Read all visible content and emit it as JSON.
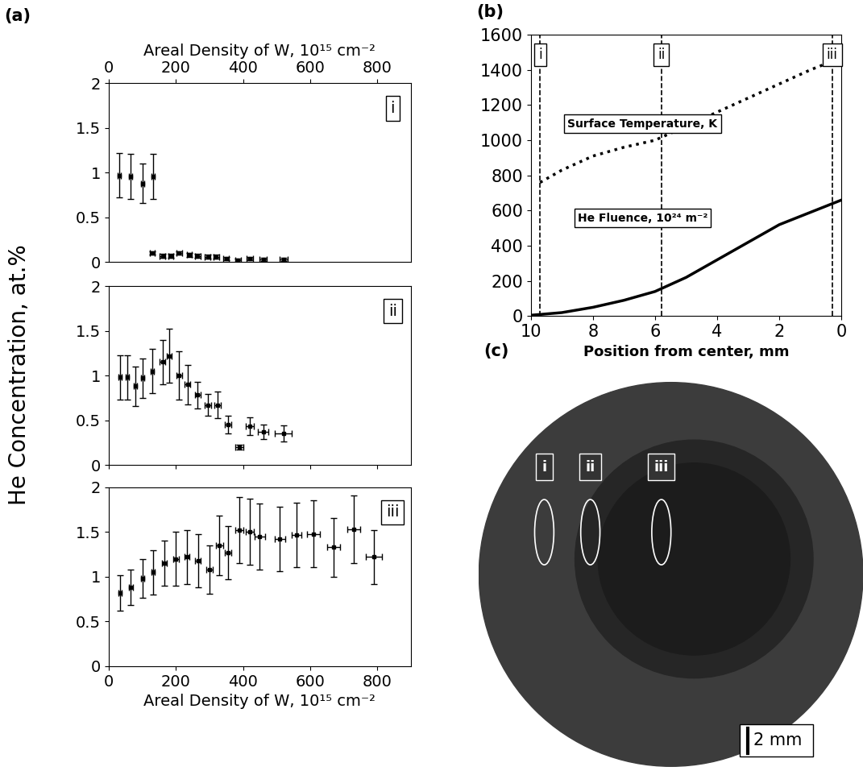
{
  "chart_data": [
    {
      "type": "scatter",
      "panel": "(a)",
      "xlabel": "Areal Density of W, 10¹⁵ cm⁻²",
      "annotations": [
        "i"
      ],
      "xlim": [
        0,
        900
      ],
      "xticks": [
        0,
        200,
        400,
        600,
        800
      ],
      "ylim": [
        0,
        2
      ],
      "yticks": [
        0,
        0.5,
        1,
        1.5,
        2
      ],
      "series": [
        {
          "x": [
            31,
            64,
            100,
            133
          ],
          "values": [
            0.97,
            0.96,
            0.88,
            0.96
          ],
          "x_err": [
            5,
            5,
            5,
            5
          ],
          "y_err": [
            0.25,
            0.25,
            0.22,
            0.25
          ],
          "color": "#000000",
          "marker": "s"
        },
        {
          "x": [
            130,
            160,
            185,
            210,
            240,
            265,
            295,
            320,
            350,
            385,
            420,
            460,
            520
          ],
          "values": [
            0.1,
            0.07,
            0.07,
            0.1,
            0.08,
            0.07,
            0.06,
            0.06,
            0.04,
            0.02,
            0.04,
            0.03,
            0.03
          ],
          "x_err": [
            8,
            8,
            8,
            8,
            8,
            8,
            8,
            8,
            8,
            8,
            10,
            10,
            12
          ],
          "y_err": [
            0.02,
            0.02,
            0.02,
            0.02,
            0.02,
            0.02,
            0.02,
            0.02,
            0.02,
            0.02,
            0.02,
            0.02,
            0.02
          ],
          "color": "#000000",
          "marker": "s"
        }
      ]
    },
    {
      "type": "scatter",
      "ylabel": "He Concentration, at.%",
      "annotations": [
        "ii"
      ],
      "tick_labels": "y",
      "xlim": [
        0,
        900
      ],
      "xticks": [
        0,
        200,
        400,
        600,
        800
      ],
      "ylim": [
        0,
        2
      ],
      "yticks": [
        0,
        0.5,
        1,
        1.5,
        2
      ],
      "series": [
        {
          "x": [
            33,
            55,
            80,
            100,
            130,
            160,
            180,
            210,
            235,
            265,
            295,
            325,
            355,
            390,
            420,
            460,
            520
          ],
          "values": [
            0.98,
            0.98,
            0.88,
            0.97,
            1.05,
            1.15,
            1.22,
            1.0,
            0.9,
            0.78,
            0.67,
            0.67,
            0.45,
            0.2,
            0.43,
            0.37,
            0.35
          ],
          "x_err": [
            5,
            5,
            5,
            5,
            5,
            8,
            8,
            8,
            8,
            8,
            10,
            10,
            10,
            12,
            12,
            15,
            25
          ],
          "y_err": [
            0.25,
            0.25,
            0.22,
            0.22,
            0.25,
            0.25,
            0.3,
            0.27,
            0.22,
            0.15,
            0.12,
            0.15,
            0.1,
            0.03,
            0.1,
            0.08,
            0.09
          ],
          "color": "#000000",
          "marker": "s"
        }
      ]
    },
    {
      "type": "scatter",
      "xlabel": "Areal Density of W, 10¹⁵ cm⁻²",
      "annotations": [
        "iii"
      ],
      "xlim": [
        0,
        900
      ],
      "xticks": [
        0,
        200,
        400,
        600,
        800
      ],
      "ylim": [
        0,
        2
      ],
      "yticks": [
        0,
        0.5,
        1,
        1.5,
        2
      ],
      "series": [
        {
          "x": [
            33,
            66,
            100,
            133,
            166,
            200,
            233,
            266,
            300,
            330,
            355,
            390,
            420,
            450,
            510,
            560,
            610,
            670,
            730,
            790
          ],
          "values": [
            0.82,
            0.88,
            0.98,
            1.05,
            1.15,
            1.2,
            1.22,
            1.18,
            1.08,
            1.35,
            1.27,
            1.52,
            1.5,
            1.45,
            1.42,
            1.47,
            1.48,
            1.33,
            1.53,
            1.22
          ],
          "x_err": [
            5,
            5,
            5,
            5,
            8,
            8,
            8,
            8,
            10,
            10,
            10,
            12,
            12,
            15,
            15,
            15,
            20,
            20,
            20,
            25
          ],
          "y_err": [
            0.2,
            0.2,
            0.22,
            0.25,
            0.25,
            0.3,
            0.3,
            0.3,
            0.27,
            0.33,
            0.3,
            0.37,
            0.37,
            0.37,
            0.36,
            0.36,
            0.37,
            0.33,
            0.38,
            0.3
          ],
          "color": "#000000",
          "marker": "s"
        }
      ]
    },
    {
      "type": "line",
      "panel": "(b)",
      "xlabel": "Position from center, mm",
      "xlim": [
        10,
        0
      ],
      "xticks": [
        10,
        8,
        6,
        4,
        2,
        0
      ],
      "ylim": [
        0,
        1600
      ],
      "yticks": [
        0,
        200,
        400,
        600,
        800,
        1000,
        1200,
        1400,
        1600
      ],
      "series": [
        {
          "name": "Surface Temperature, K",
          "x": [
            9.7,
            9,
            8,
            7,
            6,
            5,
            4,
            3,
            2,
            1,
            0
          ],
          "values": [
            760,
            830,
            910,
            960,
            1000,
            1080,
            1160,
            1240,
            1320,
            1400,
            1470
          ],
          "color": "#000000",
          "line_style": "dotted"
        },
        {
          "name": "He Fluence, 10²⁴ m⁻²",
          "x": [
            10,
            9,
            8,
            7,
            6,
            5,
            4,
            3,
            2,
            1,
            0
          ],
          "values": [
            5,
            20,
            50,
            90,
            140,
            220,
            320,
            420,
            520,
            590,
            660
          ],
          "color": "#000000",
          "line_style": "solid"
        }
      ],
      "vlines": [
        {
          "x": 9.7,
          "label": "i"
        },
        {
          "x": 5.8,
          "label": "ii"
        },
        {
          "x": 0.3,
          "label": "iii"
        }
      ]
    }
  ],
  "photo": {
    "panel": "(c)",
    "regions": [
      "i",
      "ii",
      "iii"
    ],
    "scale_bar": "2 mm"
  }
}
